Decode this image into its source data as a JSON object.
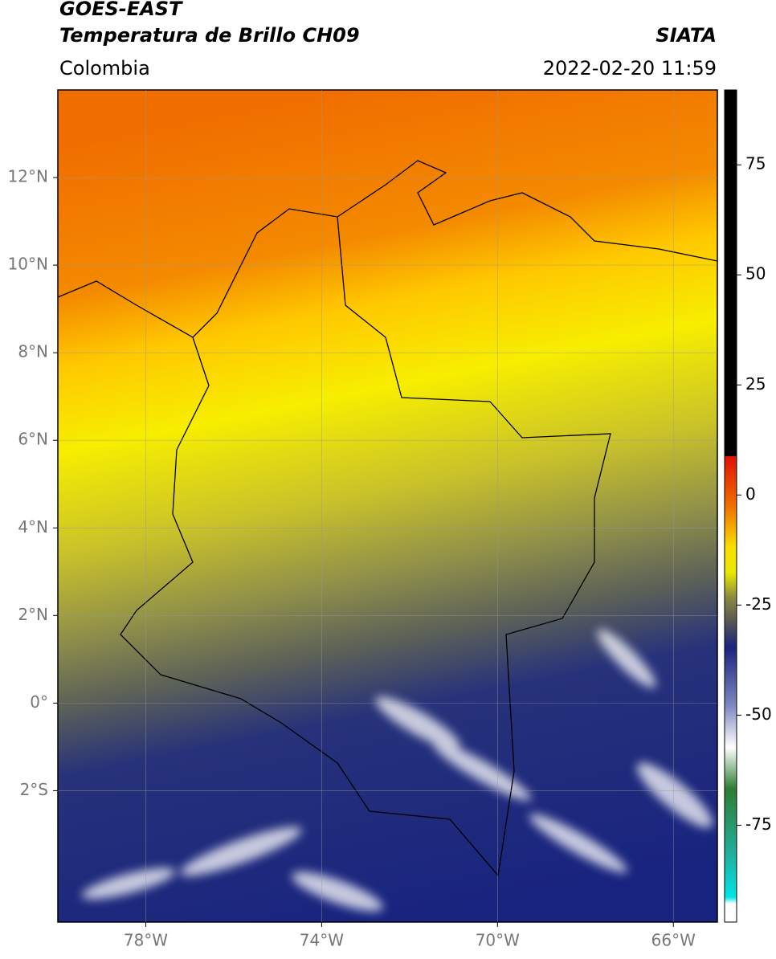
{
  "header": {
    "title_line1": "GOES-EAST",
    "title_line2": "Temperatura de Brillo CH09",
    "region": "Colombia",
    "source": "SIATA",
    "datetime": "2022-02-20 11:59"
  },
  "map": {
    "xlim": [
      -80,
      -65
    ],
    "ylim": [
      -5,
      14
    ],
    "xticks": [
      {
        "value": -78,
        "label": "78°W"
      },
      {
        "value": -74,
        "label": "74°W"
      },
      {
        "value": -70,
        "label": "70°W"
      },
      {
        "value": -66,
        "label": "66°W"
      }
    ],
    "yticks": [
      {
        "value": 12,
        "label": "12°N"
      },
      {
        "value": 10,
        "label": "10°N"
      },
      {
        "value": 8,
        "label": "8°N"
      },
      {
        "value": 6,
        "label": "6°N"
      },
      {
        "value": 4,
        "label": "4°N"
      },
      {
        "value": 2,
        "label": "2°N"
      },
      {
        "value": 0,
        "label": "0°"
      },
      {
        "value": -2,
        "label": "2°S"
      }
    ],
    "grid": true
  },
  "colorbar": {
    "ylim": [
      -97,
      92
    ],
    "yticks": [
      75,
      50,
      25,
      0,
      -25,
      -50,
      -75
    ]
  }
}
